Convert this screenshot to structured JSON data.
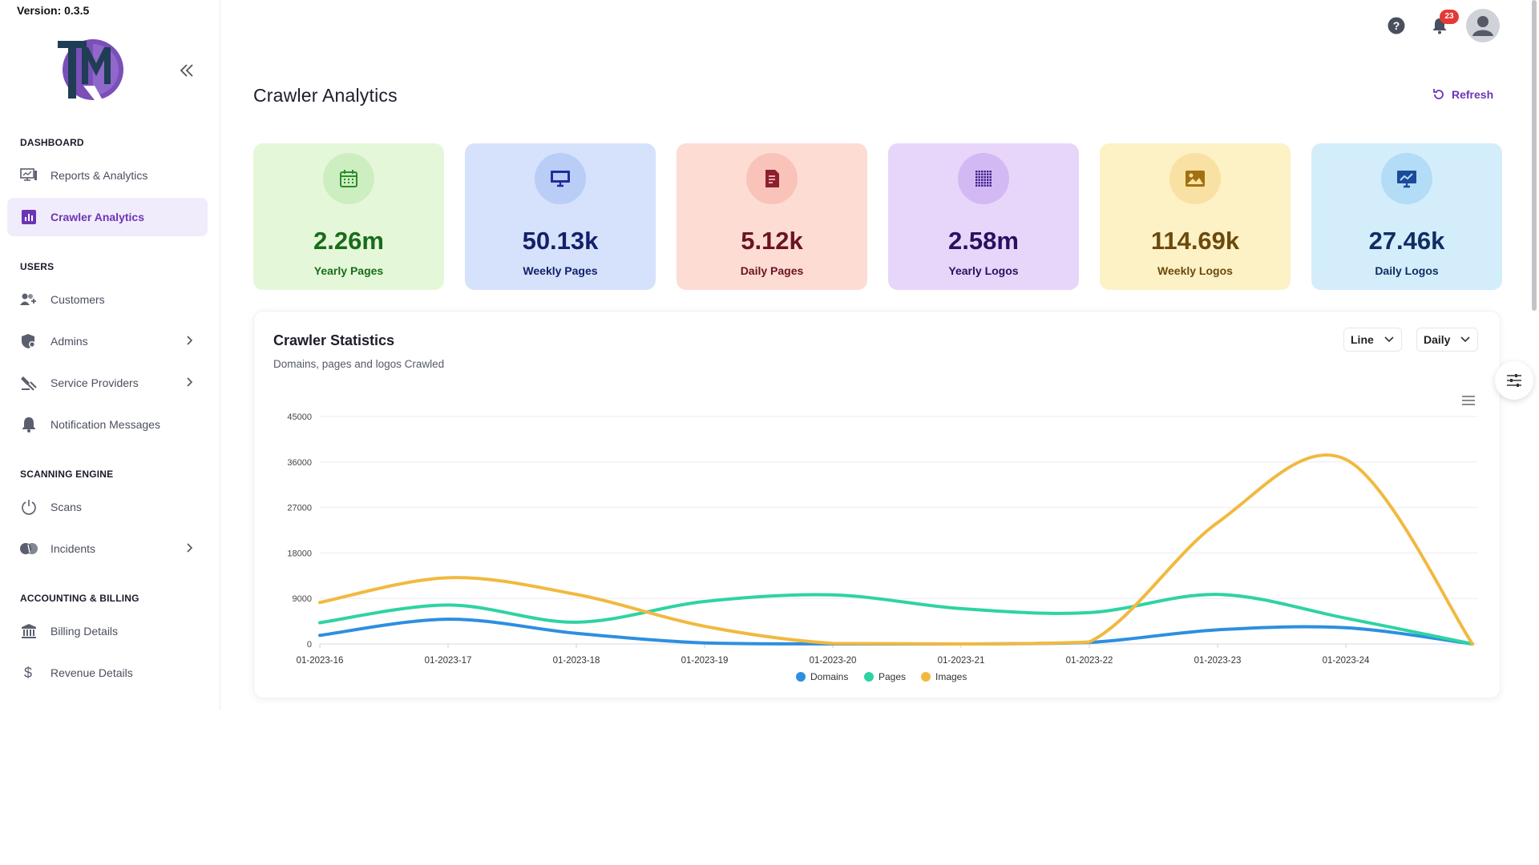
{
  "app": {
    "version": "Version: 0.3.5",
    "logo_text": "TMR"
  },
  "sidebar": {
    "sections": [
      {
        "title": "DASHBOARD"
      },
      {
        "title": "USERS"
      },
      {
        "title": "SCANNING ENGINE"
      },
      {
        "title": "ACCOUNTING & BILLING"
      }
    ],
    "items": [
      {
        "label": "Reports & Analytics",
        "icon": "reports-icon"
      },
      {
        "label": "Crawler Analytics",
        "icon": "analytics-icon",
        "active": true
      },
      {
        "label": "Customers",
        "icon": "customers-icon"
      },
      {
        "label": "Admins",
        "icon": "admins-icon"
      },
      {
        "label": "Service Providers",
        "icon": "service-providers-icon"
      },
      {
        "label": "Notification Messages",
        "icon": "bell-icon"
      },
      {
        "label": "Scans",
        "icon": "power-icon"
      },
      {
        "label": "Incidents",
        "icon": "incidents-icon"
      },
      {
        "label": "Billing Details",
        "icon": "bank-icon"
      },
      {
        "label": "Revenue Details",
        "icon": "dollar-icon"
      }
    ]
  },
  "header": {
    "notification_count": "23"
  },
  "page": {
    "title": "Crawler Analytics",
    "refresh_label": "Refresh"
  },
  "stats": [
    {
      "value": "2.26m",
      "label": "Yearly Pages",
      "bg": "#e4f8d9",
      "circle": "#cdeec0",
      "color": "#1a6b1a",
      "icon_color": "#2c8c2c"
    },
    {
      "value": "50.13k",
      "label": "Weekly Pages",
      "bg": "#d6e2fb",
      "circle": "#b9cdf7",
      "color": "#13206b",
      "icon_color": "#1d2f9a"
    },
    {
      "value": "5.12k",
      "label": "Daily Pages",
      "bg": "#fddcd4",
      "circle": "#f9c3b9",
      "color": "#6b1322",
      "icon_color": "#8c1f30"
    },
    {
      "value": "2.58m",
      "label": "Yearly Logos",
      "bg": "#e7d6f9",
      "circle": "#d3b9f3",
      "color": "#2a1060",
      "icon_color": "#3a1c8a"
    },
    {
      "value": "114.69k",
      "label": "Weekly Logos",
      "bg": "#fdf1c6",
      "circle": "#f8e1a2",
      "color": "#6b4a0b",
      "icon_color": "#a27012"
    },
    {
      "value": "27.46k",
      "label": "Daily Logos",
      "bg": "#d3edfb",
      "circle": "#b3dcf6",
      "color": "#0f2d63",
      "icon_color": "#1c4a9a"
    }
  ],
  "chart_panel": {
    "title": "Crawler Statistics",
    "subtitle": "Domains, pages and logos Crawled",
    "type_select": "Line",
    "period_select": "Daily"
  },
  "chart_data": {
    "type": "line",
    "x": [
      "01-2023-16",
      "01-2023-17",
      "01-2023-18",
      "01-2023-19",
      "01-2023-20",
      "01-2023-21",
      "01-2023-22",
      "01-2023-23",
      "01-2023-24",
      ""
    ],
    "ylim": [
      0,
      45000
    ],
    "yticks": [
      0,
      9000,
      18000,
      27000,
      36000,
      45000
    ],
    "series": [
      {
        "name": "Domains",
        "color": "#2d8fe0",
        "values": [
          1700,
          4900,
          2100,
          200,
          0,
          0,
          300,
          2800,
          3200,
          0
        ]
      },
      {
        "name": "Pages",
        "color": "#2fd3a2",
        "values": [
          4200,
          7700,
          4300,
          8400,
          9700,
          7000,
          6200,
          9800,
          5100,
          0
        ]
      },
      {
        "name": "Images",
        "color": "#f1b940",
        "values": [
          8200,
          13100,
          9800,
          3500,
          100,
          0,
          400,
          24000,
          36500,
          0
        ]
      }
    ],
    "legend_position": "bottom",
    "grid": true
  }
}
